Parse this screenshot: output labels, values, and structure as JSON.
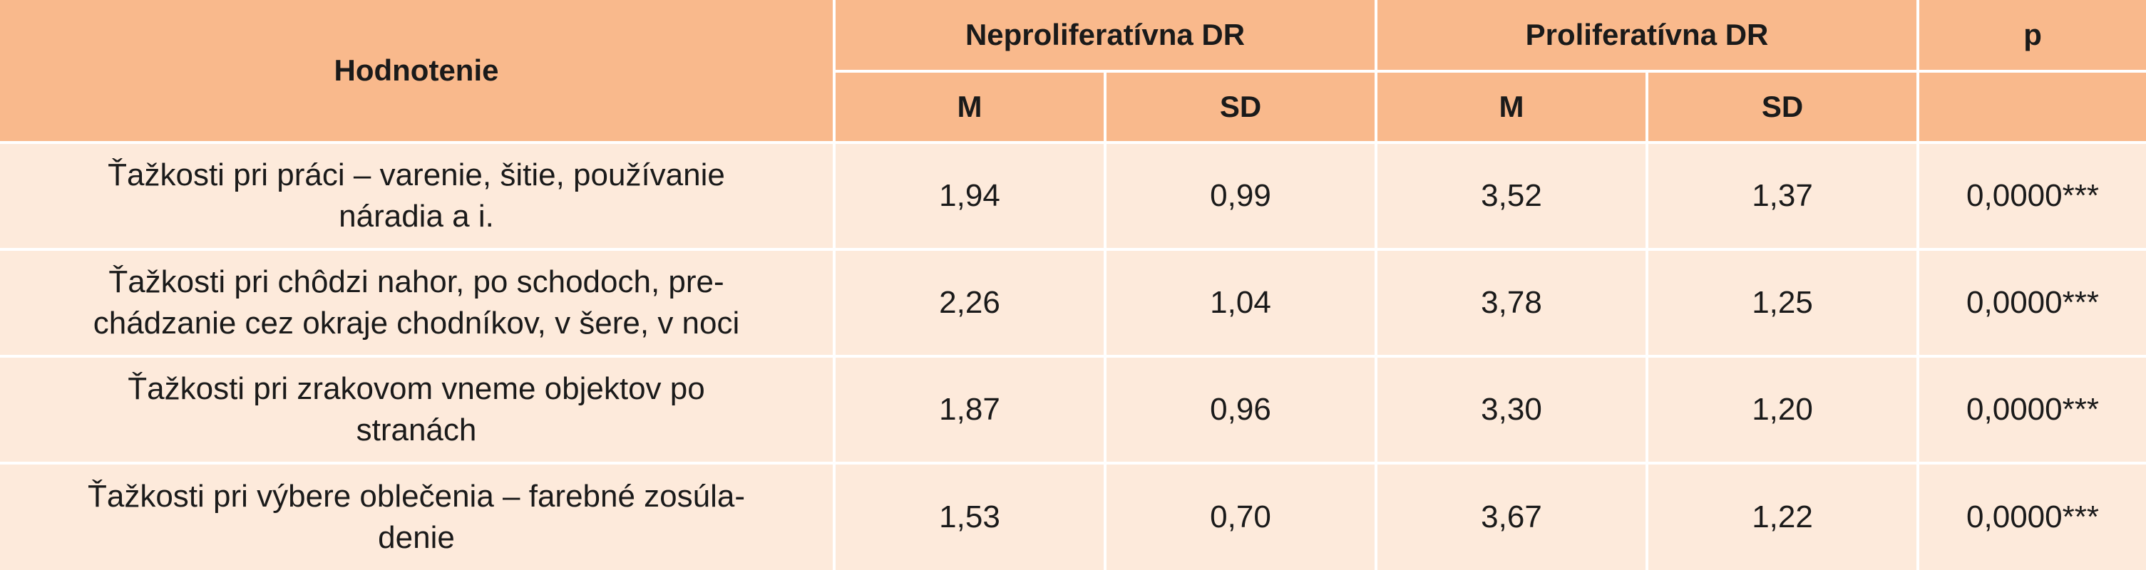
{
  "table": {
    "header": {
      "hodnotenie": "Hodnotenie",
      "group1": "Neproliferatívna DR",
      "group2": "Proliferatívna DR",
      "p": "p",
      "m1": "M",
      "sd1": "SD",
      "m2": "M",
      "sd2": "SD"
    },
    "rows": [
      {
        "label_line1": "Ťažkosti pri práci – varenie, šitie, používanie",
        "label_line2": "náradia a i.",
        "m1": "1,94",
        "sd1": "0,99",
        "m2": "3,52",
        "sd2": "1,37",
        "p": "0,0000***"
      },
      {
        "label_line1": "Ťažkosti pri chôdzi nahor, po schodoch, pre-",
        "label_line2": "chádzanie cez okraje chodníkov, v šere, v noci",
        "m1": "2,26",
        "sd1": "1,04",
        "m2": "3,78",
        "sd2": "1,25",
        "p": "0,0000***"
      },
      {
        "label_line1": "Ťažkosti pri zrakovom vneme objektov po",
        "label_line2": "stranách",
        "m1": "1,87",
        "sd1": "0,96",
        "m2": "3,30",
        "sd2": "1,20",
        "p": "0,0000***"
      },
      {
        "label_line1": "Ťažkosti pri výbere oblečenia – farebné zosúla-",
        "label_line2": "denie",
        "m1": "1,53",
        "sd1": "0,70",
        "m2": "3,67",
        "sd2": "1,22",
        "p": "0,0000***"
      }
    ]
  }
}
